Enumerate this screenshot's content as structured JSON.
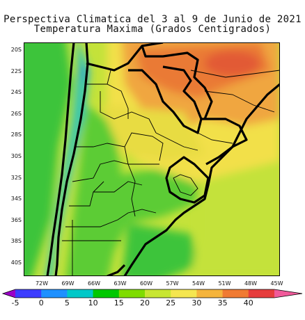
{
  "title": {
    "line1": "Perspectiva Climatica del 3 al 9 de Junio de 2021",
    "line2": "Temperatura Maxima (Grados Centigrados)"
  },
  "map": {
    "lat_labels": [
      "20S",
      "22S",
      "24S",
      "26S",
      "28S",
      "30S",
      "32S",
      "34S",
      "36S",
      "38S",
      "40S"
    ],
    "lon_labels": [
      "72W",
      "69W",
      "66W",
      "63W",
      "60W",
      "57W",
      "54W",
      "51W",
      "48W",
      "45W"
    ]
  },
  "colorbar": {
    "ticks": [
      "-5",
      "0",
      "5",
      "10",
      "15",
      "20",
      "25",
      "30",
      "35",
      "40"
    ],
    "colors": [
      "#9b00c8",
      "#3c3cff",
      "#1e90ff",
      "#00c8c8",
      "#00c800",
      "#7fdc00",
      "#c8e632",
      "#f5e650",
      "#f5b43c",
      "#f07a32",
      "#e63c3c",
      "#f05a9a"
    ]
  },
  "colors": {
    "teal": "#33c5b4",
    "green": "#3ec43a",
    "lightgreen": "#8ed630",
    "yellowgreen": "#c4e23a",
    "yellow": "#f2e04a",
    "orange": "#f0a640",
    "darkorange": "#ea7a34",
    "red": "#e64a3a"
  }
}
